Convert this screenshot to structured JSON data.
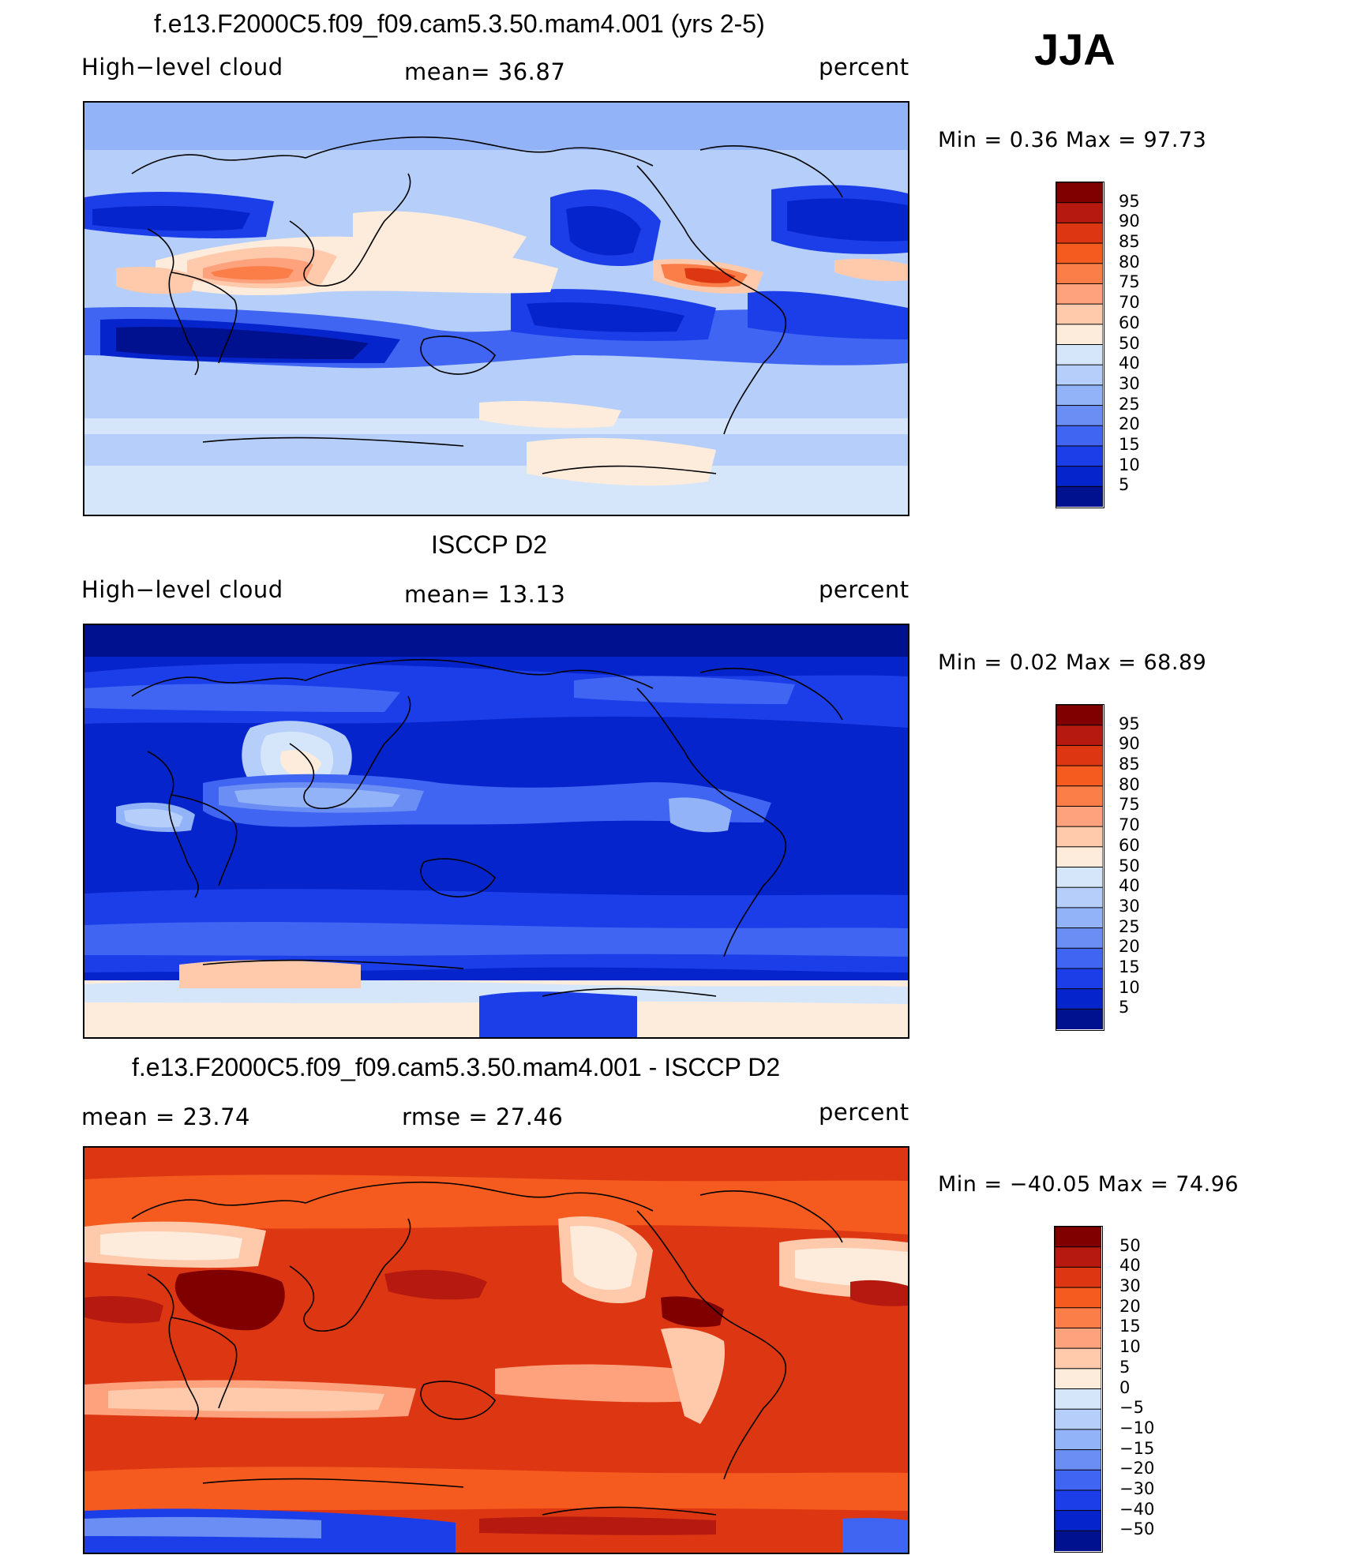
{
  "season": "JJA",
  "panels": [
    {
      "title": "f.e13.F2000C5.f09_f09.cam5.3.50.mam4.001 (yrs 2-5)",
      "left_label": "High−level cloud",
      "center_label": "mean=   36.87",
      "units": "percent",
      "minmax": "Min =     0.36  Max =    97.73",
      "palette": "abs",
      "colorbar_ticks": [
        "95",
        "90",
        "85",
        "80",
        "75",
        "70",
        "60",
        "50",
        "40",
        "30",
        "25",
        "20",
        "15",
        "10",
        "5"
      ],
      "colors": [
        "#800000",
        "#b5190f",
        "#dc3712",
        "#f55a1e",
        "#fb7d48",
        "#fda27c",
        "#fecaab",
        "#fdebdc",
        "#d5e6fa",
        "#b5cffa",
        "#92b3f7",
        "#6a8ef4",
        "#3f65f2",
        "#1c3ee8",
        "#0624cc",
        "#00118f"
      ]
    },
    {
      "title": "ISCCP D2",
      "left_label": "High−level cloud",
      "center_label": "mean=   13.13",
      "units": "percent",
      "minmax": "Min =     0.02  Max =    68.89",
      "palette": "abs",
      "colorbar_ticks": [
        "95",
        "90",
        "85",
        "80",
        "75",
        "70",
        "60",
        "50",
        "40",
        "30",
        "25",
        "20",
        "15",
        "10",
        "5"
      ],
      "colors": [
        "#800000",
        "#b5190f",
        "#dc3712",
        "#f55a1e",
        "#fb7d48",
        "#fda27c",
        "#fecaab",
        "#fdebdc",
        "#d5e6fa",
        "#b5cffa",
        "#92b3f7",
        "#6a8ef4",
        "#3f65f2",
        "#1c3ee8",
        "#0624cc",
        "#00118f"
      ]
    },
    {
      "title": "f.e13.F2000C5.f09_f09.cam5.3.50.mam4.001 - ISCCP D2",
      "left_label": "mean =    23.74",
      "center_label": "rmse =    27.46",
      "units": "percent",
      "minmax": "Min = −40.05  Max =    74.96",
      "palette": "diff",
      "colorbar_ticks": [
        "50",
        "40",
        "30",
        "20",
        "15",
        "10",
        "5",
        "0",
        "−5",
        "−10",
        "−15",
        "−20",
        "−30",
        "−40",
        "−50"
      ],
      "colors": [
        "#800000",
        "#b5190f",
        "#dc3712",
        "#f55a1e",
        "#fb7d48",
        "#fda27c",
        "#fecaab",
        "#fdebdc",
        "#d5e6fa",
        "#b5cffa",
        "#92b3f7",
        "#6a8ef4",
        "#3f65f2",
        "#1c3ee8",
        "#0624cc",
        "#00118f"
      ]
    }
  ]
}
